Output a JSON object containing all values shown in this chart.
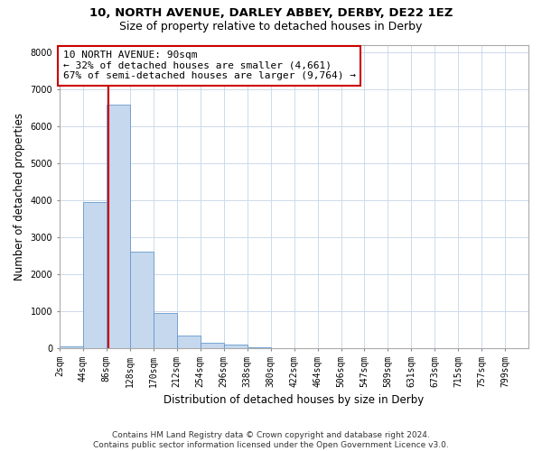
{
  "title_line1": "10, NORTH AVENUE, DARLEY ABBEY, DERBY, DE22 1EZ",
  "title_line2": "Size of property relative to detached houses in Derby",
  "xlabel": "Distribution of detached houses by size in Derby",
  "ylabel": "Number of detached properties",
  "footer_line1": "Contains HM Land Registry data © Crown copyright and database right 2024.",
  "footer_line2": "Contains public sector information licensed under the Open Government Licence v3.0.",
  "annotation_line1": "10 NORTH AVENUE: 90sqm",
  "annotation_line2": "← 32% of detached houses are smaller (4,661)",
  "annotation_line3": "67% of semi-detached houses are larger (9,764) →",
  "property_size": 90,
  "bar_edges": [
    2,
    44,
    86,
    128,
    170,
    212,
    254,
    296,
    338,
    380,
    422,
    464,
    506,
    547,
    589,
    631,
    673,
    715,
    757,
    799,
    841
  ],
  "bar_heights": [
    50,
    3950,
    6600,
    2600,
    950,
    330,
    130,
    90,
    30,
    0,
    0,
    0,
    0,
    0,
    0,
    0,
    0,
    0,
    0,
    0
  ],
  "bar_color": "#c5d8ee",
  "bar_edgecolor": "#6699cc",
  "vline_color": "#cc0000",
  "annotation_box_edgecolor": "#cc0000",
  "annotation_box_facecolor": "#ffffff",
  "background_color": "#ffffff",
  "grid_color": "#ccdaeb",
  "ylim": [
    0,
    8200
  ],
  "yticks": [
    0,
    1000,
    2000,
    3000,
    4000,
    5000,
    6000,
    7000,
    8000
  ],
  "title_fontsize": 9.5,
  "subtitle_fontsize": 9,
  "axis_label_fontsize": 8.5,
  "tick_fontsize": 7,
  "annotation_fontsize": 8,
  "footer_fontsize": 6.5
}
